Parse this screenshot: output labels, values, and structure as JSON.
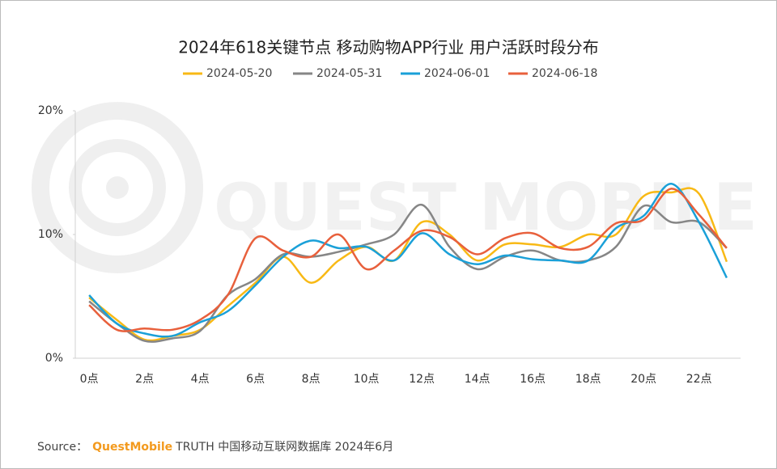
{
  "chart_data": {
    "type": "line",
    "title": "2024年618关键节点 移动购物APP行业 用户活跃时段分布",
    "watermark": "QUEST MOBILE",
    "categories": [
      "0点",
      null,
      "2点",
      null,
      "4点",
      null,
      "6点",
      null,
      "8点",
      null,
      "10点",
      null,
      "12点",
      null,
      "14点",
      null,
      "16点",
      null,
      "18点",
      null,
      "20点",
      null,
      "22点",
      null
    ],
    "series": [
      {
        "name": "2024-05-20",
        "color": "#f8b915",
        "values": [
          4.9,
          3.1,
          1.5,
          1.8,
          2.3,
          4.2,
          6.1,
          8.2,
          6.1,
          7.9,
          9.0,
          7.9,
          11.0,
          10.0,
          7.9,
          9.2,
          9.2,
          9.0,
          10.0,
          10.0,
          13.1,
          13.4,
          13.3,
          7.8
        ]
      },
      {
        "name": "2024-05-31",
        "color": "#868686",
        "values": [
          4.6,
          2.8,
          1.4,
          1.6,
          2.2,
          5.1,
          6.4,
          8.4,
          8.2,
          8.6,
          9.2,
          10.0,
          12.4,
          9.0,
          7.2,
          8.2,
          8.7,
          7.9,
          7.9,
          9.0,
          12.3,
          11.0,
          11.0,
          8.9
        ]
      },
      {
        "name": "2024-06-01",
        "color": "#1aa0d8",
        "values": [
          5.1,
          2.8,
          2.0,
          1.8,
          2.9,
          3.8,
          5.9,
          8.2,
          9.5,
          8.9,
          9.0,
          7.9,
          10.1,
          8.4,
          7.6,
          8.3,
          8.0,
          7.9,
          7.9,
          10.5,
          11.5,
          14.1,
          11.0,
          6.5
        ]
      },
      {
        "name": "2024-06-18",
        "color": "#e8603c",
        "values": [
          4.3,
          2.3,
          2.4,
          2.3,
          3.1,
          5.1,
          9.7,
          8.7,
          8.2,
          10.0,
          7.2,
          8.7,
          10.3,
          9.8,
          8.4,
          9.7,
          10.1,
          8.9,
          9.0,
          10.9,
          11.2,
          13.7,
          11.6,
          8.9
        ]
      }
    ],
    "ylim": [
      0,
      20
    ],
    "yticks": [
      {
        "value": 0,
        "label": "0%"
      },
      {
        "value": 10,
        "label": "10%"
      },
      {
        "value": 20,
        "label": "20%"
      }
    ],
    "grid": false,
    "source": {
      "prefix": "Source：",
      "brand": "QuestMobile",
      "text": "TRUTH 中国移动互联网数据库 2024年6月"
    }
  }
}
